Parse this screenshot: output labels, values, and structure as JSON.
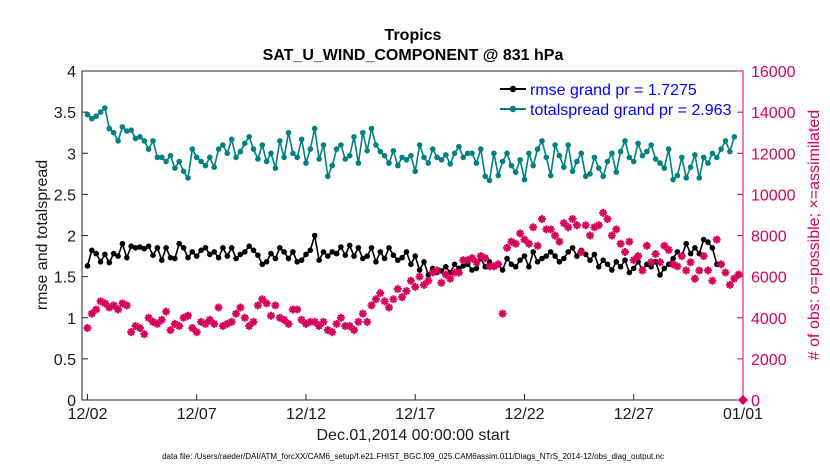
{
  "chart_data": {
    "type": "line",
    "title": "Tropics",
    "subtitle": "SAT_U_WIND_COMPONENT @ 831 hPa",
    "xlabel": "Dec.01,2014 00:00:00 start",
    "ylabel_left": "rmse and totalspread",
    "ylabel_right": "# of obs: o=possible; ×=assimilated",
    "footnote": "data file: /Users/raeder/DAI/ATM_forcXX/CAM6_setup/f.e21.FHIST_BGC.f09_025.CAM6assim.011/Diags_NTrS_2014-12/obs_diag_output.nc",
    "x_ticks": [
      "12/02",
      "12/07",
      "12/12",
      "12/17",
      "12/22",
      "12/27",
      "01/01"
    ],
    "x_tick_days": [
      1,
      6,
      11,
      16,
      21,
      26,
      31
    ],
    "xlim": [
      0.75,
      31
    ],
    "ylim_left": [
      0,
      4
    ],
    "yticks_left": [
      "0",
      "0.5",
      "1",
      "1.5",
      "2",
      "2.5",
      "3",
      "3.5",
      "4"
    ],
    "ylim_right": [
      0,
      16000
    ],
    "yticks_right": [
      "0",
      "2000",
      "4000",
      "6000",
      "8000",
      "10000",
      "12000",
      "14000",
      "16000"
    ],
    "legend": [
      {
        "label": "rmse grand pr = 1.7275",
        "color": "#000000"
      },
      {
        "label": "totalspread grand pr = 2.963",
        "color": "#008080"
      }
    ],
    "series": [
      {
        "name": "rmse",
        "axis": "left",
        "color": "#000000",
        "values": [
          1.63,
          1.82,
          1.78,
          1.68,
          1.77,
          1.67,
          1.78,
          1.75,
          1.9,
          1.73,
          1.87,
          1.85,
          1.86,
          1.84,
          1.87,
          1.76,
          1.85,
          1.7,
          1.85,
          1.73,
          1.72,
          1.9,
          1.85,
          1.73,
          1.8,
          1.75,
          1.82,
          1.85,
          1.77,
          1.8,
          1.73,
          1.85,
          1.75,
          1.85,
          1.72,
          1.77,
          1.8,
          1.87,
          1.82,
          1.76,
          1.65,
          1.68,
          1.78,
          1.72,
          1.85,
          1.8,
          1.72,
          1.8,
          1.68,
          1.7,
          1.77,
          1.82,
          2.0,
          1.7,
          1.8,
          1.75,
          1.8,
          1.78,
          1.86,
          1.76,
          1.88,
          1.75,
          1.85,
          1.72,
          1.75,
          1.85,
          1.68,
          1.8,
          1.72,
          1.85,
          1.76,
          1.7,
          1.73,
          1.8,
          1.65,
          1.75,
          1.58,
          1.68,
          1.52,
          1.6,
          1.55,
          1.57,
          1.62,
          1.55,
          1.65,
          1.6,
          1.63,
          1.65,
          1.58,
          1.6,
          1.72,
          1.62,
          1.68,
          1.63,
          1.65,
          1.58,
          1.72,
          1.65,
          1.62,
          1.7,
          1.75,
          1.62,
          1.8,
          1.68,
          1.72,
          1.75,
          1.8,
          1.75,
          1.68,
          1.72,
          1.8,
          1.85,
          1.75,
          1.82,
          1.77,
          1.7,
          1.77,
          1.62,
          1.7,
          1.65,
          1.58,
          1.68,
          1.62,
          1.7,
          1.55,
          1.6,
          1.68,
          1.58,
          1.65,
          1.62,
          1.68,
          1.52,
          1.6,
          1.65,
          1.72,
          1.8,
          1.75,
          1.9,
          1.78,
          1.85,
          1.78,
          1.95,
          1.92,
          1.85,
          1.65
        ]
      },
      {
        "name": "totalspread",
        "axis": "left",
        "color": "#008080",
        "values": [
          3.47,
          3.42,
          3.45,
          3.5,
          3.55,
          3.3,
          3.25,
          3.15,
          3.32,
          3.27,
          3.28,
          3.18,
          3.2,
          3.15,
          3.05,
          3.15,
          2.95,
          2.95,
          2.9,
          2.97,
          2.82,
          2.9,
          2.78,
          2.7,
          3.05,
          2.95,
          2.9,
          2.85,
          2.95,
          2.83,
          3.05,
          3.1,
          3.0,
          3.17,
          2.95,
          3.02,
          3.12,
          3.2,
          3.05,
          2.93,
          3.1,
          2.9,
          3.0,
          2.82,
          3.15,
          2.95,
          3.25,
          3.0,
          2.95,
          3.17,
          2.88,
          3.05,
          3.3,
          2.93,
          3.1,
          2.72,
          2.85,
          3.05,
          3.1,
          2.93,
          2.97,
          3.2,
          2.88,
          3.25,
          3.03,
          3.3,
          3.1,
          3.02,
          2.97,
          2.88,
          3.03,
          2.85,
          2.95,
          2.92,
          2.97,
          2.78,
          3.1,
          2.95,
          2.88,
          3.05,
          2.95,
          2.92,
          2.98,
          2.87,
          3.0,
          3.08,
          2.95,
          3.0,
          3.0,
          2.88,
          3.05,
          2.72,
          2.67,
          3.0,
          2.73,
          2.9,
          3.0,
          2.85,
          2.77,
          2.92,
          2.68,
          3.0,
          2.85,
          3.05,
          3.15,
          2.95,
          2.73,
          3.1,
          2.97,
          2.83,
          3.1,
          2.78,
          2.9,
          3.0,
          2.72,
          2.75,
          2.95,
          2.82,
          2.72,
          2.9,
          3.0,
          2.77,
          3.02,
          3.15,
          2.95,
          2.9,
          3.12,
          2.97,
          3.02,
          3.1,
          2.93,
          2.88,
          2.82,
          3.05,
          2.68,
          2.73,
          2.95,
          2.7,
          2.83,
          2.98,
          2.7,
          2.95,
          2.88,
          3.0,
          2.95,
          3.05,
          3.15,
          3.02,
          3.2
        ]
      },
      {
        "name": "assimilated obs",
        "axis": "right",
        "color": "#d6005a",
        "values": [
          3500,
          4200,
          4400,
          4800,
          4700,
          4500,
          4600,
          4400,
          4700,
          4600,
          3300,
          3600,
          3500,
          3200,
          4000,
          3800,
          3700,
          3900,
          4300,
          3400,
          3700,
          3600,
          4000,
          4100,
          3500,
          3300,
          3800,
          3700,
          3900,
          3700,
          4500,
          3600,
          3700,
          3800,
          4200,
          4500,
          4000,
          3600,
          3800,
          4600,
          4900,
          4700,
          4100,
          4600,
          4000,
          3900,
          3700,
          4400,
          4400,
          3900,
          3700,
          3800,
          3800,
          3600,
          3800,
          3400,
          3300,
          3700,
          4000,
          3600,
          3600,
          3400,
          3800,
          4200,
          3800,
          4600,
          4900,
          5200,
          4800,
          4500,
          4900,
          5400,
          5000,
          5300,
          5800,
          5500,
          6000,
          5600,
          5800,
          6200,
          6300,
          5700,
          6100,
          5900,
          6200,
          6200,
          6800,
          6800,
          6900,
          6700,
          7000,
          6900,
          6500,
          6500,
          6600,
          4200,
          7400,
          7700,
          7600,
          8100,
          7800,
          7600,
          8400,
          7500,
          8800,
          8300,
          8300,
          8000,
          7700,
          8600,
          8400,
          8800,
          8500,
          7200,
          8500,
          8000,
          8400,
          8500,
          9100,
          8800,
          8000,
          8300,
          7600,
          7200,
          7700,
          6800,
          7000,
          6300,
          7500,
          6700,
          7100,
          6700,
          7500,
          7300,
          6600,
          6500,
          7000,
          6300,
          6700,
          5900,
          6300,
          7000,
          6300,
          5800,
          7800,
          6600,
          6200,
          5600,
          5900,
          6100
        ]
      }
    ]
  }
}
